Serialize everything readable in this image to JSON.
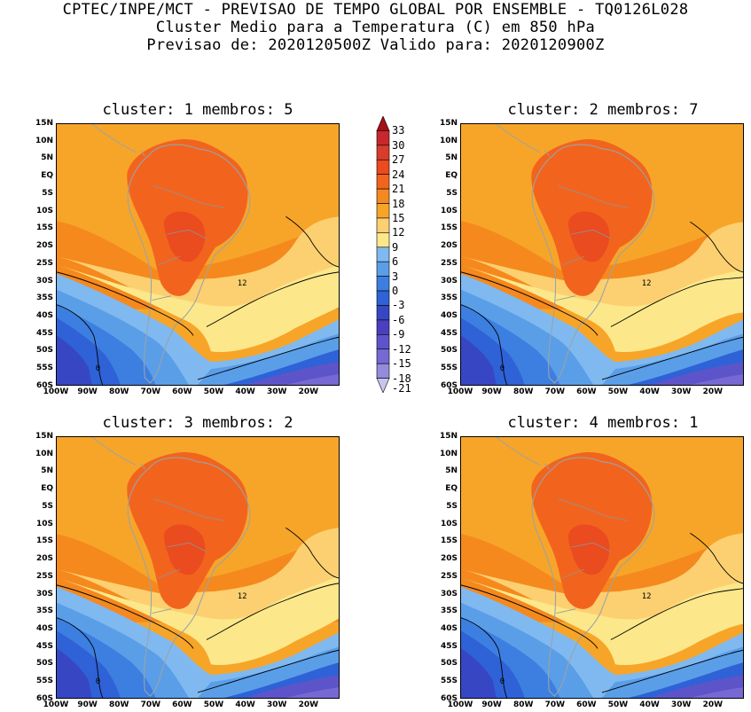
{
  "header": {
    "line1": "CPTEC/INPE/MCT - PREVISAO DE TEMPO GLOBAL POR ENSEMBLE - TQ0126L028",
    "line2": "Cluster Medio para a Temperatura (C) em 850 hPa",
    "line3": "Previsao de: 2020120500Z   Valido para: 2020120900Z"
  },
  "panels": [
    {
      "title": "cluster: 1  membros: 5"
    },
    {
      "title": "cluster: 2  membros: 7"
    },
    {
      "title": "cluster: 3  membros: 2"
    },
    {
      "title": "cluster: 4  membros: 1"
    }
  ],
  "lat_labels": [
    "15N",
    "10N",
    "5N",
    "EQ",
    "5S",
    "10S",
    "15S",
    "20S",
    "25S",
    "30S",
    "35S",
    "40S",
    "45S",
    "50S",
    "55S",
    "60S"
  ],
  "lon_labels": [
    "100W",
    "90W",
    "80W",
    "70W",
    "60W",
    "50W",
    "40W",
    "30W",
    "20W"
  ],
  "colorbar": {
    "levels": [
      "33",
      "30",
      "27",
      "24",
      "21",
      "18",
      "15",
      "12",
      "9",
      "6",
      "3",
      "0",
      "-3",
      "-6",
      "-9",
      "-12",
      "-15",
      "-18",
      "-21"
    ],
    "colors": [
      "#a50f15",
      "#c8282d",
      "#d83c2a",
      "#ea4b1f",
      "#f2641e",
      "#f5891e",
      "#f7a529",
      "#fcd070",
      "#fce88a",
      "#7fb9f0",
      "#5a9ee8",
      "#3d7fe0",
      "#2e62d6",
      "#3747c4",
      "#4b3fbf",
      "#5e54c9",
      "#7669d3",
      "#948bdc",
      "#c8c4ee"
    ]
  },
  "contour_labels": {
    "twelve": "12",
    "zero": "0"
  }
}
